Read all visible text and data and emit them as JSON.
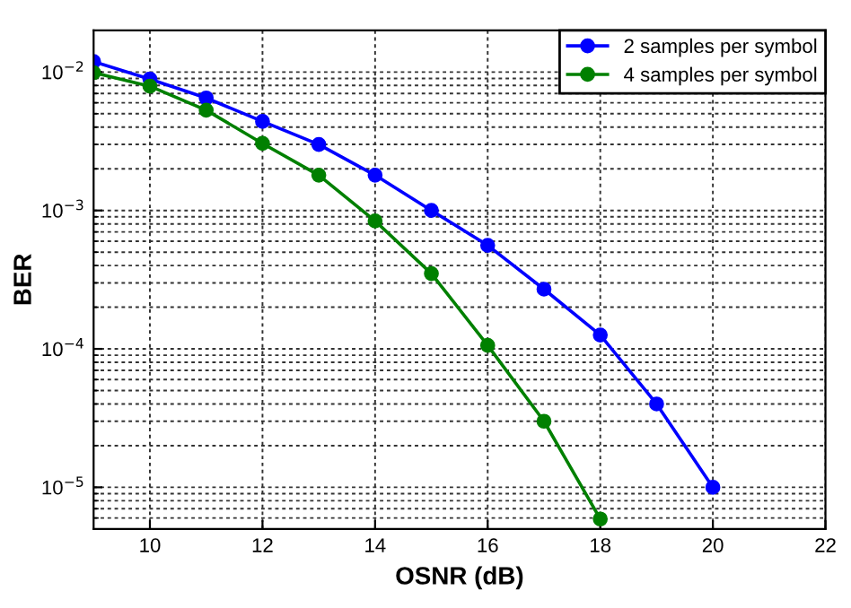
{
  "chart_data": {
    "type": "line",
    "xlabel": "OSNR (dB)",
    "ylabel": "BER",
    "log": "y",
    "grid": true,
    "legend": "top right",
    "marker": "circle",
    "line_style": "solid",
    "x": [
      9,
      10,
      11,
      12,
      13,
      14,
      15,
      16,
      17,
      18,
      19,
      20
    ],
    "series": [
      {
        "name": "2 samples per symbol",
        "color": "#0000ff",
        "values": [
          0.0119,
          0.0089,
          0.0065,
          0.0044,
          0.003,
          0.0018,
          0.001,
          0.00056,
          0.00027,
          0.000126,
          4e-05,
          1e-05
        ]
      },
      {
        "name": "4 samples per symbol",
        "color": "#008000",
        "x": [
          9,
          10,
          11,
          12,
          13,
          14,
          15,
          16,
          17,
          18
        ],
        "values": [
          0.0099,
          0.0079,
          0.0053,
          0.00305,
          0.0018,
          0.00084,
          0.00035,
          0.000106,
          3e-05,
          5.9e-06
        ]
      }
    ],
    "xlim": [
      9,
      22
    ],
    "xticks": [
      10,
      12,
      14,
      16,
      18,
      20,
      22
    ],
    "ylim": [
      5e-06,
      0.02
    ],
    "yticks": [
      {
        "value": 1e-05,
        "label": "10$^{−5}$"
      },
      {
        "value": 0.0001,
        "label": "10$^{−4}$"
      },
      {
        "value": 0.001,
        "label": "10$^{−3}$"
      },
      {
        "value": 0.01,
        "label": "10$^{−2}$"
      }
    ]
  }
}
